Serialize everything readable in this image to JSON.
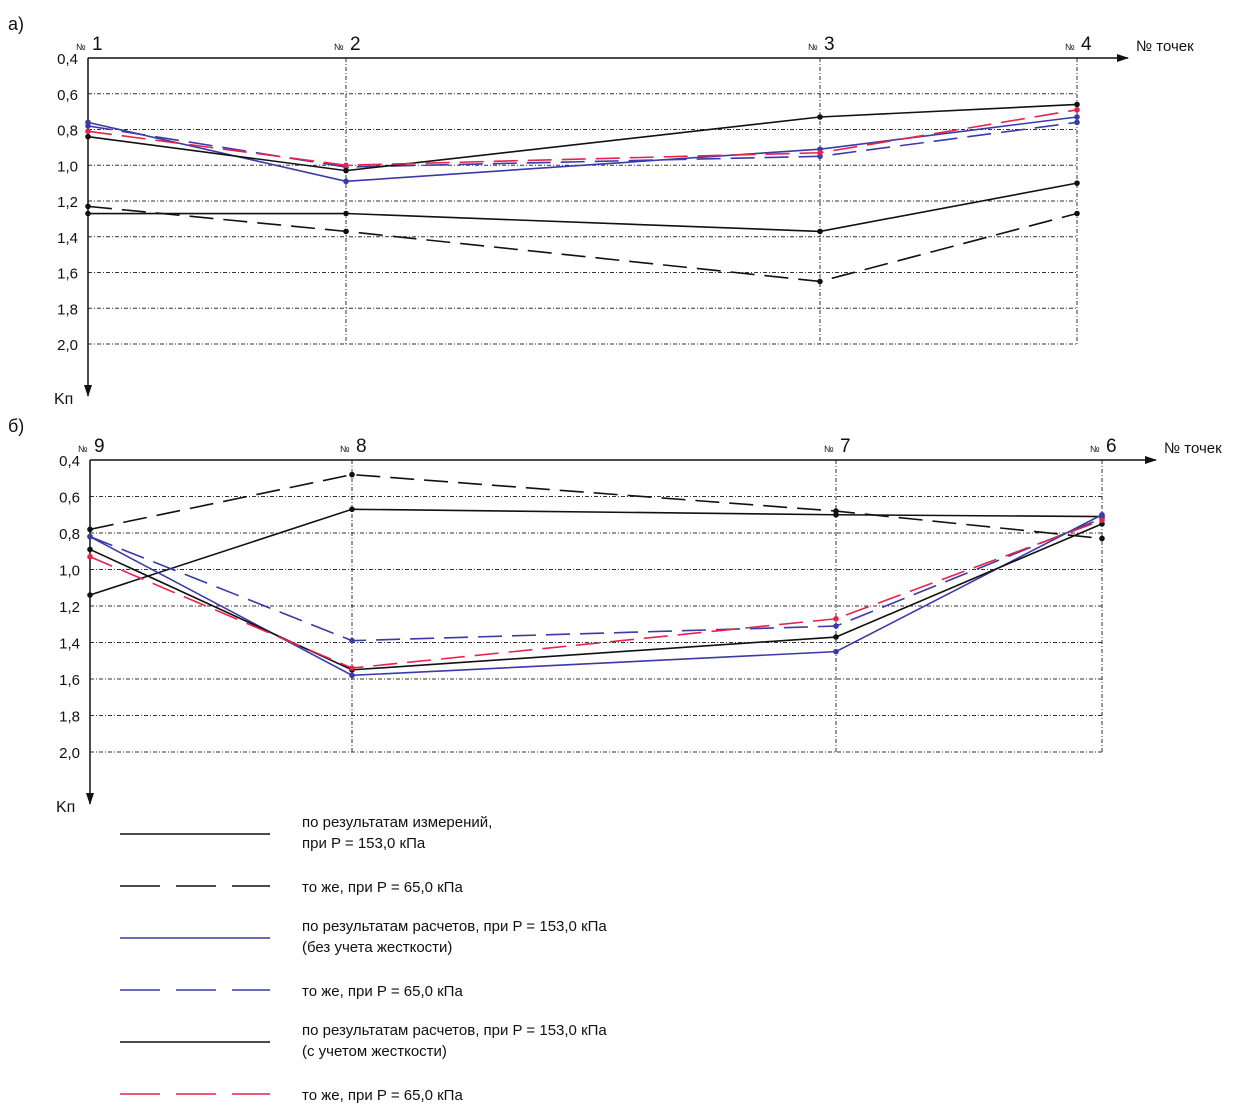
{
  "panel_labels": [
    "а)",
    "б)"
  ],
  "legend": [
    {
      "label_lines": [
        "по результатам измерений,",
        "при P = 153,0 кПа"
      ],
      "color": "#111111",
      "dash": "solid"
    },
    {
      "label_lines": [
        "то же, при P = 65,0 кПа"
      ],
      "color": "#111111",
      "dash": "dashed"
    },
    {
      "label_lines": [
        "по результатам расчетов, при P = 153,0 кПа",
        "(без учета жесткости)"
      ],
      "color": "#3a3aa8",
      "dash": "solid"
    },
    {
      "label_lines": [
        "то же, при P = 65,0 кПа"
      ],
      "color": "#3a3aa8",
      "dash": "dashed"
    },
    {
      "label_lines": [
        "по результатам расчетов, при P = 153,0 кПа",
        "(с учетом жесткости)"
      ],
      "color": "#111111",
      "dash": "solid"
    },
    {
      "label_lines": [
        "то же, при P = 65,0 кПа"
      ],
      "color": "#e8224a",
      "dash": "dashed"
    }
  ],
  "chart_data": [
    {
      "type": "line",
      "panel": "а)",
      "xlabel": "№ точек",
      "ylabel": "Kп",
      "categories": [
        "1",
        "2",
        "3",
        "4"
      ],
      "point_prefix": "№",
      "ylim": [
        0.4,
        2.0
      ],
      "y_inverted": true,
      "yticks": [
        "0,4",
        "0,6",
        "0,8",
        "1,0",
        "1,2",
        "1,4",
        "1,6",
        "1,8",
        "2,0"
      ],
      "grid": true,
      "series": [
        {
          "values": [
            1.27,
            1.27,
            1.37,
            1.1
          ],
          "color": "#111111",
          "dash": "solid"
        },
        {
          "values": [
            1.23,
            1.37,
            1.65,
            1.27
          ],
          "color": "#111111",
          "dash": "dashed"
        },
        {
          "values": [
            0.76,
            1.09,
            0.91,
            0.73
          ],
          "color": "#3a3aa8",
          "dash": "solid"
        },
        {
          "values": [
            0.78,
            1.01,
            0.95,
            0.76
          ],
          "color": "#3a3aa8",
          "dash": "dashed"
        },
        {
          "values": [
            0.84,
            1.03,
            0.73,
            0.66
          ],
          "color": "#111111",
          "dash": "solid"
        },
        {
          "values": [
            0.81,
            1.0,
            0.93,
            0.69
          ],
          "color": "#e8224a",
          "dash": "dashed"
        }
      ]
    },
    {
      "type": "line",
      "panel": "б)",
      "xlabel": "№ точек",
      "ylabel": "Kп",
      "categories": [
        "9",
        "8",
        "7",
        "6"
      ],
      "point_prefix": "№",
      "ylim": [
        0.4,
        2.0
      ],
      "y_inverted": true,
      "yticks": [
        "0,4",
        "0,6",
        "0,8",
        "1,0",
        "1,2",
        "1,4",
        "1,6",
        "1,8",
        "2,0"
      ],
      "grid": true,
      "series": [
        {
          "values": [
            1.14,
            0.67,
            0.7,
            0.71
          ],
          "color": "#111111",
          "dash": "solid"
        },
        {
          "values": [
            0.78,
            0.48,
            0.68,
            0.83
          ],
          "color": "#111111",
          "dash": "dashed"
        },
        {
          "values": [
            0.82,
            1.58,
            1.45,
            0.7
          ],
          "color": "#3a3aa8",
          "dash": "solid"
        },
        {
          "values": [
            0.82,
            1.39,
            1.31,
            0.72
          ],
          "color": "#3a3aa8",
          "dash": "dashed"
        },
        {
          "values": [
            0.89,
            1.55,
            1.37,
            0.75
          ],
          "color": "#111111",
          "dash": "solid"
        },
        {
          "values": [
            0.93,
            1.54,
            1.27,
            0.73
          ],
          "color": "#e8224a",
          "dash": "dashed"
        }
      ]
    }
  ]
}
